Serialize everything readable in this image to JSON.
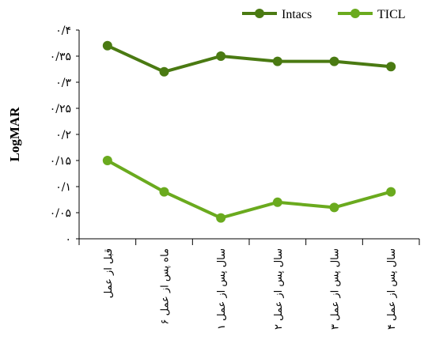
{
  "chart_data": {
    "type": "line",
    "title": "",
    "xlabel": "",
    "ylabel": "LogMAR",
    "ylim": [
      0,
      0.4
    ],
    "yticks": [
      {
        "value": 0,
        "label": "۰"
      },
      {
        "value": 0.05,
        "label": "۰/۰۵"
      },
      {
        "value": 0.1,
        "label": "۰/۱"
      },
      {
        "value": 0.15,
        "label": "۰/۱۵"
      },
      {
        "value": 0.2,
        "label": "۰/۲"
      },
      {
        "value": 0.25,
        "label": "۰/۲۵"
      },
      {
        "value": 0.3,
        "label": "۰/۳"
      },
      {
        "value": 0.35,
        "label": "۰/۳۵"
      },
      {
        "value": 0.4,
        "label": "۰/۴"
      }
    ],
    "categories": [
      "قبل از عمل",
      "۶ ماه پس از عمل",
      "۱ سال پس از عمل",
      "۲ سال پس از عمل",
      "۳ سال پس از عمل",
      "۴ سال پس از عمل"
    ],
    "series": [
      {
        "name": "Intacs",
        "color": "#4a7a12",
        "values": [
          0.37,
          0.32,
          0.35,
          0.34,
          0.34,
          0.33
        ]
      },
      {
        "name": "TICL",
        "color": "#6aaa1e",
        "values": [
          0.15,
          0.09,
          0.04,
          0.07,
          0.06,
          0.09
        ]
      }
    ],
    "grid": false,
    "legend_position": "top-right"
  }
}
